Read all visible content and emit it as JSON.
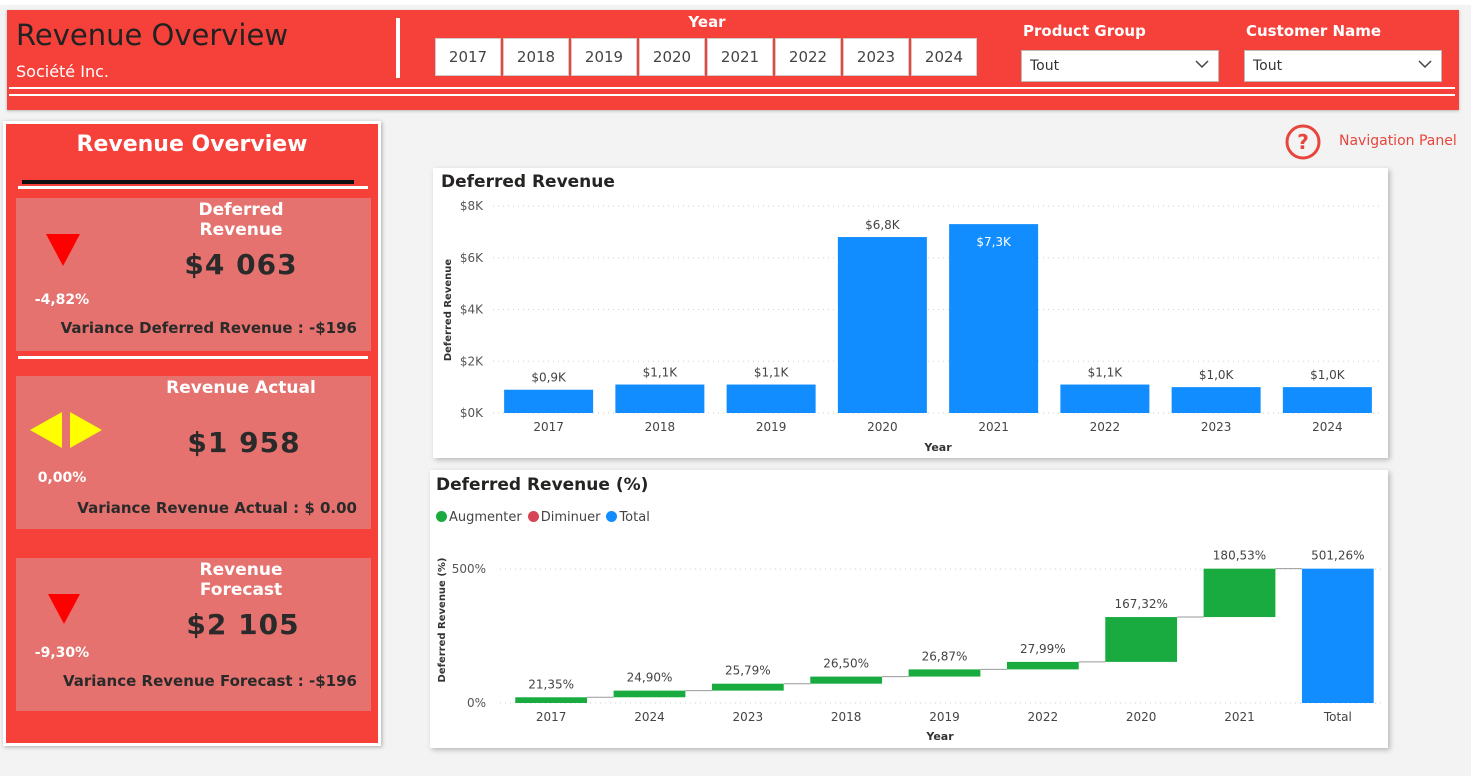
{
  "header": {
    "title": "Revenue Overview",
    "subtitle": "Société Inc.",
    "year_label": "Year",
    "years": [
      "2017",
      "2018",
      "2019",
      "2020",
      "2021",
      "2022",
      "2023",
      "2024"
    ],
    "product_group_label": "Product Group",
    "product_group_value": "Tout",
    "customer_name_label": "Customer Name",
    "customer_name_value": "Tout"
  },
  "panel": {
    "title": "Revenue Overview",
    "cards": [
      {
        "title": "Deferred Revenue",
        "value": "$4 063",
        "pct": "-4,82%",
        "variance": "Variance Deferred Revenue : -$196",
        "indicator": "down-arrow-icon"
      },
      {
        "title": "Revenue Actual",
        "value": "$1 958",
        "pct": "0,00%",
        "variance": "Variance Revenue Actual : $ 0.00",
        "indicator": "left-right-arrows-icon"
      },
      {
        "title": "Revenue Forecast",
        "value": "$2 105",
        "pct": "-9,30%",
        "variance": "Variance Revenue Forecast : -$196",
        "indicator": "down-arrow-icon"
      }
    ]
  },
  "nav": {
    "label": "Navigation Panel",
    "icon": "help-icon"
  },
  "colors": {
    "brand_red": "#f6403a",
    "card_red": "#e5726e",
    "bar_blue": "#118dff",
    "increase_green": "#1aab40",
    "decrease_red": "#d64554",
    "indicator_red": "#ff0000",
    "indicator_yellow": "#ffff00"
  },
  "chart_data": [
    {
      "type": "bar",
      "title": "Deferred Revenue",
      "xlabel": "Year",
      "ylabel": "Deferred Revenue",
      "categories": [
        "2017",
        "2018",
        "2019",
        "2020",
        "2021",
        "2022",
        "2023",
        "2024"
      ],
      "values": [
        0.9,
        1.1,
        1.1,
        6.8,
        7.3,
        1.1,
        1.0,
        1.0
      ],
      "data_labels": [
        "$0,9K",
        "$1,1K",
        "$1,1K",
        "$6,8K",
        "$7,3K",
        "$1,1K",
        "$1,0K",
        "$1,0K"
      ],
      "ylim": [
        0,
        8
      ],
      "yticks": [
        "$0K",
        "$2K",
        "$4K",
        "$6K",
        "$8K"
      ],
      "grid": true
    },
    {
      "type": "waterfall",
      "title": "Deferred Revenue (%)",
      "xlabel": "Year",
      "ylabel": "Deferred Revenue (%)",
      "legend": [
        "Augmenter",
        "Diminuer",
        "Total"
      ],
      "legend_position": "top-left",
      "categories": [
        "2017",
        "2024",
        "2023",
        "2018",
        "2019",
        "2022",
        "2020",
        "2021",
        "Total"
      ],
      "values": [
        21.35,
        24.9,
        25.79,
        26.5,
        26.87,
        27.99,
        167.32,
        180.53,
        501.26
      ],
      "data_labels": [
        "21,35%",
        "24,90%",
        "25,79%",
        "26,50%",
        "26,87%",
        "27,99%",
        "167,32%",
        "180,53%",
        "501,26%"
      ],
      "kinds": [
        "increase",
        "increase",
        "increase",
        "increase",
        "increase",
        "increase",
        "increase",
        "increase",
        "total"
      ],
      "yticks": [
        "0%",
        "500%"
      ],
      "ylim": [
        0,
        520
      ],
      "grid": true
    }
  ]
}
